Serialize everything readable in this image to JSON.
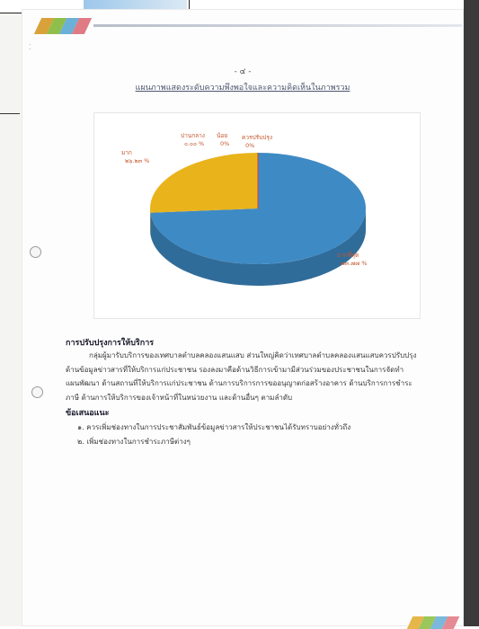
{
  "page": {
    "page_number": "- ๔ -",
    "chart_title": "แผนภาพแสดงระดับความพึงพอใจและความคิดเห็นในภาพรวม"
  },
  "chart_data": {
    "type": "pie",
    "title": "แผนภาพแสดงระดับความพึงพอใจและความคิดเห็นในภาพรวม",
    "slices": [
      {
        "label": "มากที่สุด",
        "value_text": "๗๓.๗๗ %",
        "value": 73.77,
        "color": "#3e8ac4"
      },
      {
        "label": "มาก",
        "value_text": "๒๖.๒๓ %",
        "value": 26.23,
        "color": "#e9b31c"
      },
      {
        "label": "ปานกลาง",
        "value_text": "๐.๐๐ %",
        "value": 0,
        "color": "#7aa05a"
      },
      {
        "label": "น้อย",
        "value_text": "0%",
        "value": 0,
        "color": "#a45a3b"
      },
      {
        "label": "ควรปรับปรุง",
        "value_text": "0%",
        "value": 0,
        "color": "#d6402e"
      }
    ]
  },
  "sections": {
    "improvement": {
      "heading": "การปรับปรุงการให้บริการ",
      "lines": [
        "กลุ่มผู้มารับบริการของเทศบาลตำบลคลองแสนแสบ ส่วนใหญ่คิดว่าเทศบาลตำบลคลองแสนแสบควรปรับปรุง",
        "ด้านข้อมูลข่าวสารที่ให้บริการแก่ประชาชน รองลงมาคือด้านวิธีการเข้ามามีส่วนร่วมของประชาชนในการจัดทำ",
        "แผนพัฒนา ด้านสถานที่ให้บริการแก่ประชาชน ด้านการบริการการขออนุญาตก่อสร้างอาคาร ด้านบริการการชำระ",
        "ภาษี ด้านการให้บริการของเจ้าหน้าที่ในหน่วยงาน และด้านอื่นๆ ตามลำดับ"
      ]
    },
    "suggestions": {
      "heading": "ข้อเสนอแนะ",
      "items": [
        "๑. ควรเพิ่มช่องทางในการประชาสัมพันธ์ข้อมูลข่าวสารให้ประชาชนได้รับทราบอย่างทั่วถึง",
        "๒. เพิ่มช่องทางในการชำระภาษีต่างๆ"
      ]
    }
  },
  "colors": {
    "header_stripes": [
      "#d9a13a",
      "#8fbf4a",
      "#6bb0d6",
      "#e07b86"
    ],
    "footer_stripes": [
      "#e6b64a",
      "#9ac65a",
      "#7ab8dc",
      "#e58a92"
    ]
  }
}
